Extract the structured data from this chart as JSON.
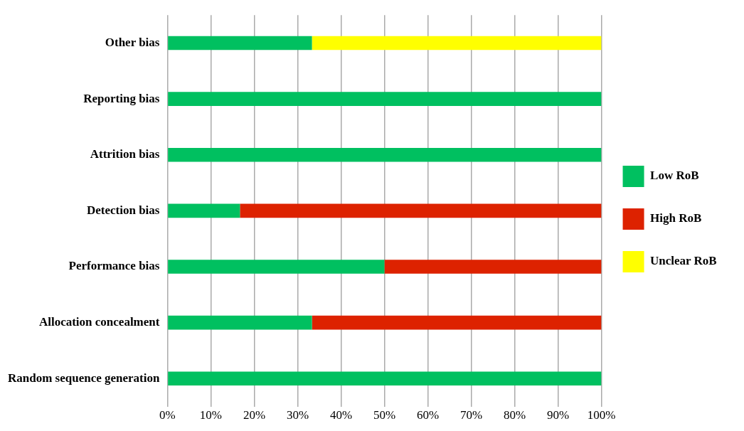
{
  "chart_data": {
    "type": "bar",
    "orientation": "horizontal",
    "stacked": true,
    "categories": [
      "Other bias",
      "Reporting bias",
      "Attrition bias",
      "Detection bias",
      "Performance bias",
      "Allocation concealment",
      "Random sequence generation"
    ],
    "series": [
      {
        "name": "Low RoB",
        "color": "#00c060",
        "values": [
          33.3,
          100,
          100,
          16.7,
          50,
          33.3,
          100
        ]
      },
      {
        "name": "High RoB",
        "color": "#dd2200",
        "values": [
          null,
          null,
          null,
          83.3,
          50,
          66.7,
          null
        ]
      },
      {
        "name": "Unclear RoB",
        "color": "#ffff00",
        "values": [
          66.7,
          null,
          null,
          null,
          null,
          null,
          null
        ]
      }
    ],
    "xlim": [
      0,
      100
    ],
    "xticks": [
      {
        "value": 0,
        "label": "0%"
      },
      {
        "value": 10,
        "label": "10%"
      },
      {
        "value": 20,
        "label": "20%"
      },
      {
        "value": 30,
        "label": "30%"
      },
      {
        "value": 40,
        "label": "40%"
      },
      {
        "value": 50,
        "label": "50%"
      },
      {
        "value": 60,
        "label": "60%"
      },
      {
        "value": 70,
        "label": "70%"
      },
      {
        "value": 80,
        "label": "80%"
      },
      {
        "value": 90,
        "label": "90%"
      },
      {
        "value": 100,
        "label": "100%"
      }
    ],
    "grid": "x",
    "legend": "right"
  }
}
